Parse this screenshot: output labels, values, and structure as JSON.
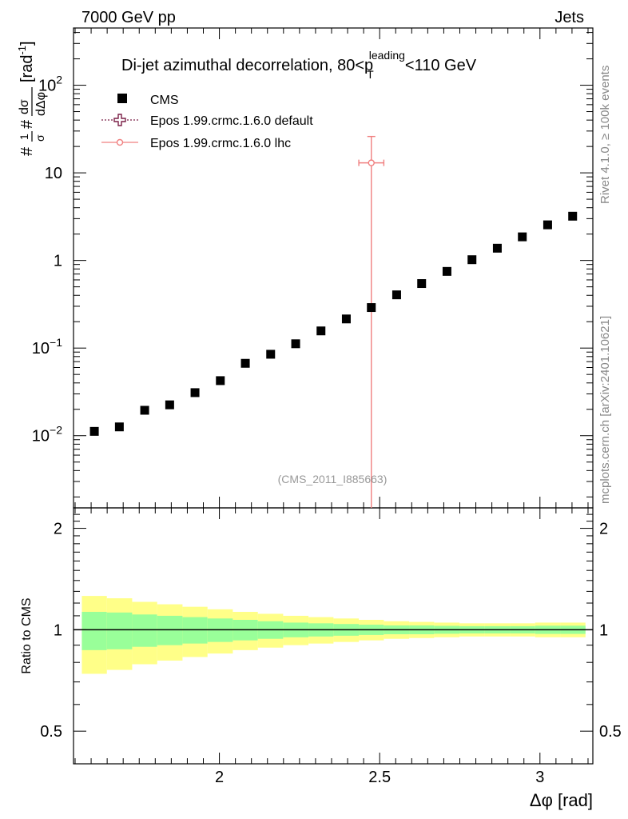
{
  "header": {
    "left": "7000 GeV pp",
    "right": "Jets"
  },
  "side_labels": {
    "rivet": "Rivet 4.1.0, ≥ 100k events",
    "mcplots": "mcplots.cern.ch [arXiv:2401.10621]"
  },
  "chart_data": {
    "type": "scatter",
    "title_main": "Di-jet azimuthal decorrelation, 80<p",
    "title_sub": "T",
    "title_sup": "leading",
    "title_end": "<110 GeV",
    "analysis_id": "(CMS_2011_I885663)",
    "ylabel": "#frac{1}{σ}#frac{dσ}{dΔφ} [rad⁻¹]",
    "ylabel_parts": {
      "frac1_num": "1",
      "frac1_den": "σ",
      "frac2_num": "dσ",
      "frac2_den": "dΔφ",
      "hash": "#",
      "unit": "[rad",
      "unit_exp": "-1",
      "unit_close": "]"
    },
    "xlabel": "Δφ [rad]",
    "ratio_ylabel": "Ratio to CMS",
    "xlim": [
      1.545,
      3.165
    ],
    "ylim_log": [
      0.0015,
      450
    ],
    "ratio_ylim": [
      0.4,
      2.3
    ],
    "x_ticks": [
      2,
      2.5,
      3
    ],
    "x_tick_labels": [
      "2",
      "2.5",
      "3"
    ],
    "y_ticks": [
      {
        "value": 0.01,
        "base": "10",
        "exp": "−2"
      },
      {
        "value": 0.1,
        "base": "10",
        "exp": "−1"
      },
      {
        "value": 1,
        "base": "1",
        "exp": ""
      },
      {
        "value": 10,
        "base": "10",
        "exp": ""
      },
      {
        "value": 100,
        "base": "10",
        "exp": "2"
      }
    ],
    "ratio_ticks": [
      0.5,
      1,
      2
    ],
    "ratio_tick_labels": [
      "0.5",
      "1",
      "2"
    ],
    "legend": [
      {
        "name": "CMS",
        "style": "marker-square",
        "color": "#000000"
      },
      {
        "name": "Epos 1.99.crmc.1.6.0 default",
        "style": "open-cross-dotted",
        "color": "#7a1f46"
      },
      {
        "name": "Epos 1.99.crmc.1.6.0 lhc",
        "style": "open-circle-line",
        "color": "#f08080"
      }
    ],
    "series": [
      {
        "name": "CMS",
        "x": [
          1.61,
          1.688,
          1.767,
          1.845,
          1.924,
          2.003,
          2.081,
          2.16,
          2.238,
          2.317,
          2.396,
          2.474,
          2.553,
          2.631,
          2.71,
          2.788,
          2.867,
          2.945,
          3.024,
          3.102
        ],
        "y": [
          0.0112,
          0.0126,
          0.0195,
          0.0225,
          0.031,
          0.0425,
          0.067,
          0.085,
          0.112,
          0.157,
          0.215,
          0.29,
          0.405,
          0.545,
          0.75,
          1.02,
          1.38,
          1.86,
          2.55,
          3.2
        ],
        "xerr": 0.039
      },
      {
        "name": "Epos 1.99.crmc.1.6.0 lhc",
        "x": [
          2.474
        ],
        "y": [
          13
        ],
        "yerr_low": [
          13
        ],
        "yerr_high": [
          13
        ],
        "xerr": 0.039
      }
    ],
    "ratio_bands": {
      "edges": [
        1.571,
        1.649,
        1.728,
        1.806,
        1.885,
        1.963,
        2.042,
        2.12,
        2.199,
        2.278,
        2.356,
        2.435,
        2.513,
        2.592,
        2.67,
        2.749,
        2.827,
        2.906,
        2.985,
        3.063,
        3.142
      ],
      "inner_half": [
        0.13,
        0.125,
        0.11,
        0.1,
        0.09,
        0.08,
        0.07,
        0.06,
        0.05,
        0.045,
        0.04,
        0.035,
        0.03,
        0.03,
        0.027,
        0.025,
        0.025,
        0.025,
        0.028,
        0.028
      ],
      "outer_half": [
        0.26,
        0.24,
        0.21,
        0.19,
        0.17,
        0.15,
        0.13,
        0.115,
        0.1,
        0.09,
        0.08,
        0.07,
        0.06,
        0.055,
        0.05,
        0.045,
        0.045,
        0.045,
        0.05,
        0.05
      ],
      "inner_color": "#99ff99",
      "outer_color": "#ffff88"
    }
  }
}
